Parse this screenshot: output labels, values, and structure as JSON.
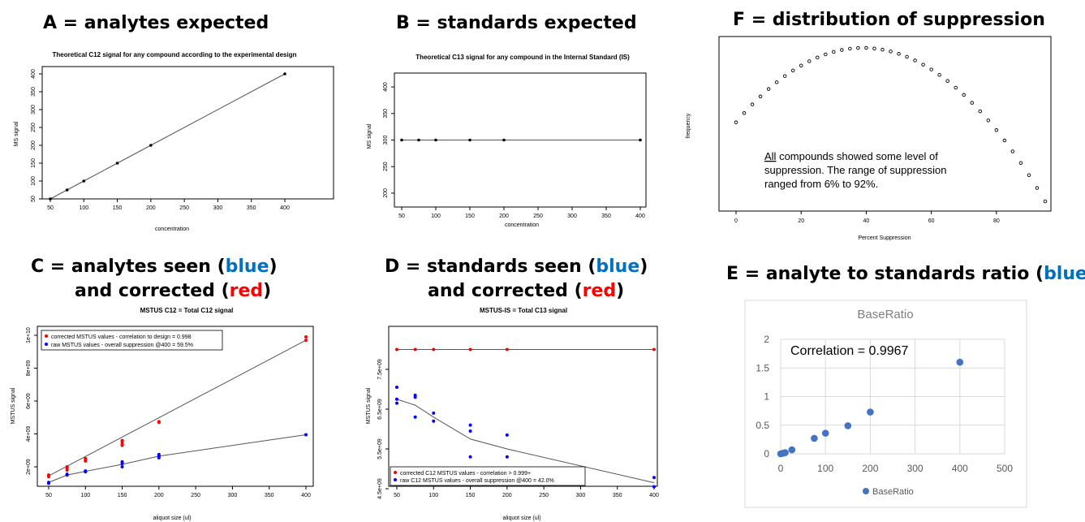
{
  "headings": {
    "A": "A = analytes expected",
    "B": "B = standards expected",
    "F": "F = distribution of suppression",
    "C1_pre": "C = analytes seen (",
    "C1_blue": "blue",
    "C1_post": ")",
    "C2_pre": "and corrected (",
    "C2_red": "red",
    "C2_post": ")",
    "D1_pre": "D = standards seen (",
    "D1_blue": "blue",
    "D1_post": ")",
    "D2_pre": "and corrected (",
    "D2_red": "red",
    "D2_post": ")",
    "E_pre": "E = analyte to standards ratio (",
    "E_blue": "blue",
    "E_post": ")"
  },
  "colors": {
    "blue": "#0000ff",
    "red": "#ff0000",
    "heading_blue": "#0070c0",
    "heading_red": "#ff0000",
    "excel_blue": "#4472c4"
  },
  "chart_data": [
    {
      "id": "A",
      "type": "line",
      "title": "Theoretical C12 signal for any compound according to the experimental design",
      "xlabel": "concentration",
      "ylabel": "MS signal",
      "xlim": [
        50,
        400
      ],
      "ylim": [
        50,
        400
      ],
      "xticks": [
        "50",
        "100",
        "150",
        "200",
        "250",
        "300",
        "350",
        "400"
      ],
      "yticks": [
        "50",
        "100",
        "150",
        "200",
        "250",
        "300",
        "350",
        "400"
      ],
      "x": [
        50,
        75,
        100,
        150,
        200,
        400
      ],
      "y": [
        50,
        75,
        100,
        150,
        200,
        400
      ]
    },
    {
      "id": "B",
      "type": "line",
      "title": "Theoretical C13 signal for any compound in the Internal Standard (IS)",
      "xlabel": "concentration",
      "ylabel": "MS signal",
      "xlim": [
        50,
        400
      ],
      "ylim": [
        180,
        420
      ],
      "xticks": [
        "50",
        "100",
        "150",
        "200",
        "250",
        "300",
        "350",
        "400"
      ],
      "yticks": [
        "200",
        "250",
        "300",
        "350",
        "400"
      ],
      "x": [
        50,
        75,
        100,
        150,
        200,
        400
      ],
      "y": [
        300,
        300,
        300,
        300,
        300,
        300
      ]
    },
    {
      "id": "F",
      "type": "scatter",
      "xlabel": "Percent Suppression",
      "ylabel": "frequency",
      "xlim": [
        0,
        95
      ],
      "xticks": [
        "0",
        "20",
        "40",
        "60",
        "80"
      ],
      "x": [
        0,
        2.5,
        5,
        7.5,
        10,
        12.5,
        15,
        17.5,
        20,
        22.5,
        25,
        27.5,
        30,
        32.5,
        35,
        37.5,
        40,
        42.5,
        45,
        47.5,
        50,
        52.5,
        55,
        57.5,
        60,
        62.5,
        65,
        67.5,
        70,
        72.5,
        75,
        77.5,
        80,
        82.5,
        85,
        87.5,
        90,
        92.5,
        95
      ],
      "annotation_underlined": "All",
      "annotation_rest": " compounds showed some level of",
      "annotation_line2": "suppression. The range of suppression",
      "annotation_line3": "ranged from 6% to 92%."
    },
    {
      "id": "C",
      "type": "scatter",
      "title": "MSTUS C12 = Total C12 signal",
      "xlabel": "aliquot size (ul)",
      "ylabel": "MSTUS signal",
      "xlim": [
        50,
        400
      ],
      "ylim": [
        1400000000.0,
        10000000000.0
      ],
      "xticks": [
        "50",
        "100",
        "150",
        "200",
        "250",
        "300",
        "350",
        "400"
      ],
      "yticks": [
        "2e+09",
        "4e+09",
        "6e+09",
        "8e+09",
        "1e+10"
      ],
      "legend": [
        "corrected MSTUS values - correlation to design = 0.998",
        "raw MSTUS values - overall suppression @400 = 59.5%"
      ],
      "series": [
        {
          "name": "corrected MSTUS values - correlation to design = 0.998",
          "x": [
            50,
            50,
            75,
            75,
            75,
            100,
            100,
            100,
            150,
            150,
            150,
            150,
            200,
            200,
            400,
            400
          ],
          "y": [
            1400000000.0,
            1500000000.0,
            1800000000.0,
            1900000000.0,
            2000000000.0,
            2350000000.0,
            2450000000.0,
            2500000000.0,
            3300000000.0,
            3400000000.0,
            3550000000.0,
            3600000000.0,
            4700000000.0,
            4750000000.0,
            9700000000.0,
            9900000000.0
          ],
          "line_x": [
            50,
            400
          ],
          "line_y": [
            1450000000.0,
            9700000000.0
          ]
        },
        {
          "name": "raw MSTUS values - overall suppression @400 = 59.5%",
          "x": [
            50,
            50,
            75,
            75,
            100,
            100,
            150,
            150,
            150,
            200,
            200,
            200,
            400
          ],
          "y": [
            1000000000.0,
            1050000000.0,
            1500000000.0,
            1550000000.0,
            1700000000.0,
            1750000000.0,
            2000000000.0,
            2200000000.0,
            2300000000.0,
            2550000000.0,
            2650000000.0,
            2750000000.0,
            3950000000.0
          ],
          "line_x": [
            50,
            75,
            100,
            150,
            200,
            400
          ],
          "line_y": [
            1050000000.0,
            1500000000.0,
            1720000000.0,
            2150000000.0,
            2650000000.0,
            3950000000.0
          ]
        }
      ]
    },
    {
      "id": "D",
      "type": "scatter",
      "title": "MSTUS-IS = Total C13 signal",
      "xlabel": "aliquot size (ul)",
      "ylabel": "MSTUS signal",
      "xlim": [
        50,
        400
      ],
      "ylim": [
        4500000000.0,
        8100000000.0
      ],
      "xticks": [
        "50",
        "100",
        "150",
        "200",
        "250",
        "300",
        "350",
        "400"
      ],
      "yticks": [
        "4.5e+09",
        "5.5e+09",
        "6.5e+09",
        "7.5e+09"
      ],
      "legend": [
        "corrected C12 MSTUS values - correlation > 0.999+",
        "raw C12 MSTUS values - overall suppression @400 = 42.0%"
      ],
      "series": [
        {
          "name": "corrected C12 MSTUS values - correlation > 0.999+",
          "x": [
            50,
            75,
            100,
            150,
            200,
            400
          ],
          "y": [
            8000000000.0,
            8000000000.0,
            8000000000.0,
            8000000000.0,
            8000000000.0,
            8000000000.0
          ],
          "line_x": [
            50,
            400
          ],
          "line_y": [
            8000000000.0,
            8000000000.0
          ]
        },
        {
          "name": "raw C12 MSTUS values - overall suppression @400 = 42.0%",
          "x": [
            50,
            50,
            50,
            75,
            75,
            75,
            100,
            100,
            150,
            150,
            150,
            200,
            200,
            400,
            400
          ],
          "y": [
            7050000000.0,
            6750000000.0,
            6650000000.0,
            6850000000.0,
            6800000000.0,
            6300000000.0,
            6400000000.0,
            6200000000.0,
            6100000000.0,
            5950000000.0,
            5300000000.0,
            5850000000.0,
            5300000000.0,
            4780000000.0,
            4550000000.0
          ],
          "line_x": [
            50,
            75,
            100,
            150,
            200,
            400
          ],
          "line_y": [
            6750000000.0,
            6600000000.0,
            6300000000.0,
            5750000000.0,
            5500000000.0,
            4650000000.0
          ]
        }
      ]
    },
    {
      "id": "E",
      "type": "scatter",
      "title": "BaseRatio",
      "annotation": "Correlation = 0.9967",
      "xlim": [
        0,
        500
      ],
      "ylim": [
        0,
        2
      ],
      "xticks": [
        "0",
        "100",
        "200",
        "300",
        "400",
        "500"
      ],
      "yticks": [
        "0",
        "0.5",
        "1",
        "1.5",
        "2"
      ],
      "legend": [
        "BaseRatio"
      ],
      "series": [
        {
          "name": "BaseRatio",
          "x": [
            0,
            5,
            10,
            25,
            75,
            100,
            150,
            200,
            400
          ],
          "y": [
            0,
            0.01,
            0.02,
            0.07,
            0.27,
            0.36,
            0.49,
            0.73,
            1.6
          ]
        }
      ]
    }
  ]
}
